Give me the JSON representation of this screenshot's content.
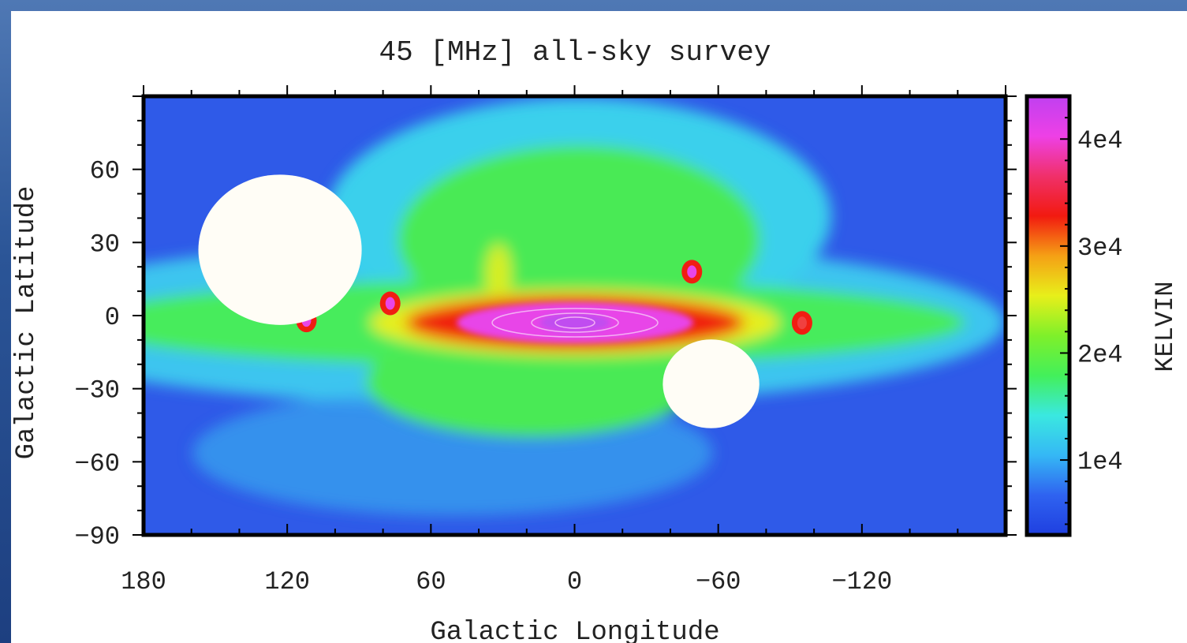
{
  "chart_data": {
    "type": "heatmap",
    "title": "45 [MHz] all-sky survey",
    "xlabel": "Galactic Longitude",
    "ylabel": "Galactic Latitude",
    "x_axis": {
      "range": [
        180,
        -180
      ],
      "ticks": [
        180,
        120,
        60,
        0,
        -60,
        -120
      ],
      "tick_labels": [
        "180",
        "120",
        "60",
        "0",
        "−60",
        "−120"
      ]
    },
    "y_axis": {
      "range": [
        -90,
        90
      ],
      "ticks": [
        60,
        30,
        0,
        -30,
        -60,
        -90
      ],
      "tick_labels": [
        "60",
        "30",
        "0",
        "−30",
        "−60",
        "−90"
      ]
    },
    "colorbar": {
      "label": "KELVIN",
      "range": [
        3000,
        44000
      ],
      "ticks": [
        10000,
        20000,
        30000,
        40000
      ],
      "tick_labels": [
        "1e4",
        "2e4",
        "3e4",
        "4e4"
      ],
      "colors": [
        "#1f3fe0",
        "#2f63f0",
        "#35b8f5",
        "#3ae8e0",
        "#43f05a",
        "#7ff02a",
        "#e8ef1a",
        "#f5a015",
        "#f21a10",
        "#f0306a",
        "#ee40e6",
        "#c040f0"
      ]
    },
    "features": {
      "galactic_plane_band": {
        "lon_range": [
          180,
          -180
        ],
        "lat_range": [
          -20,
          20
        ],
        "level": 12000
      },
      "galactic_center_peak": {
        "lon": 0,
        "lat": 0,
        "level": 44000
      },
      "north_polar_spur": {
        "lon_range": [
          60,
          -70
        ],
        "lat_range": [
          10,
          75
        ],
        "level": 12000
      },
      "blanked_regions": [
        {
          "lon": 123,
          "lat": 27,
          "radius_deg": 22
        },
        {
          "lon": -57,
          "lat": -28,
          "radius_deg": 13
        }
      ],
      "point_sources": [
        {
          "lon": 112,
          "lat": -2,
          "level": 30000
        },
        {
          "lon": 77,
          "lat": 5,
          "level": 30000
        },
        {
          "lon": -49,
          "lat": 18,
          "level": 25000
        },
        {
          "lon": -95,
          "lat": -3,
          "level": 22000
        }
      ]
    }
  }
}
